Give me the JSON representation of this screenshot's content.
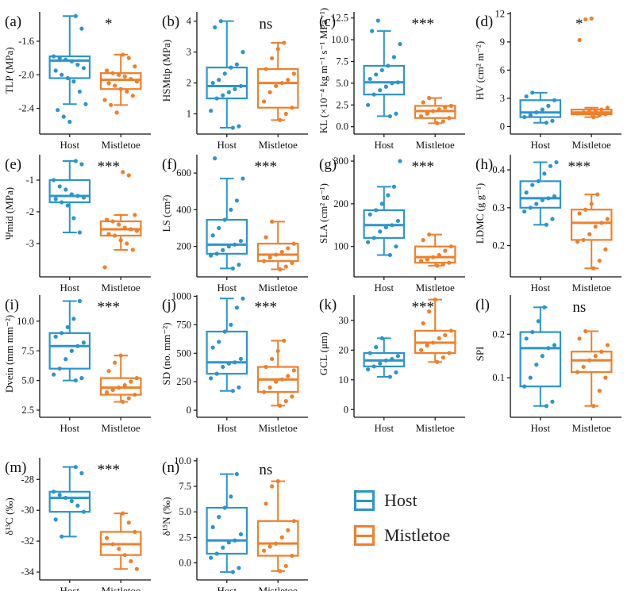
{
  "colors": {
    "host": "#2b95cf",
    "mistletoe": "#f07f2a",
    "axis": "#111111"
  },
  "legend": [
    {
      "name": "Host",
      "color": "#2b95cf"
    },
    {
      "name": "Mistletoe",
      "color": "#f07f2a"
    }
  ],
  "chart_data": [
    {
      "type": "box",
      "panel": "(a)",
      "ylabel": "TLP (MPa)",
      "significance": "*",
      "ylim": [
        -2.65,
        -1.25
      ],
      "yticks": [
        -1.6,
        -2.0,
        -2.4
      ],
      "ytick_labels": [
        "-1.6",
        "-2.0",
        "-2.4"
      ],
      "categories": [
        "Host",
        "Mistletoe"
      ],
      "boxes": [
        {
          "name": "Host",
          "min": -2.35,
          "q1": -2.04,
          "median": -1.83,
          "q3": -1.78,
          "max": -1.3,
          "points": [
            -1.3,
            -1.45,
            -1.78,
            -1.8,
            -1.82,
            -1.84,
            -1.88,
            -1.92,
            -1.95,
            -2.0,
            -2.04,
            -2.08,
            -2.2,
            -2.35,
            -2.42,
            -2.5,
            -2.56
          ]
        },
        {
          "name": "Mistletoe",
          "min": -2.36,
          "q1": -2.17,
          "median": -2.06,
          "q3": -1.98,
          "max": -1.76,
          "points": [
            -1.76,
            -1.8,
            -1.9,
            -1.95,
            -1.98,
            -2.0,
            -2.02,
            -2.05,
            -2.08,
            -2.1,
            -2.13,
            -2.17,
            -2.2,
            -2.25,
            -2.3,
            -2.36,
            -2.45
          ]
        }
      ]
    },
    {
      "type": "box",
      "panel": "(b)",
      "ylabel": "HSMtlp (MPa)",
      "significance": "ns",
      "ylim": [
        0.5,
        4.3
      ],
      "yticks": [
        1,
        2,
        3,
        4
      ],
      "ytick_labels": [
        "1",
        "2",
        "3",
        "4"
      ],
      "categories": [
        "Host",
        "Mistletoe"
      ],
      "boxes": [
        {
          "name": "Host",
          "min": 0.55,
          "q1": 1.5,
          "median": 1.9,
          "q3": 2.5,
          "max": 4.0,
          "points": [
            0.55,
            0.6,
            1.1,
            1.5,
            1.6,
            1.7,
            1.8,
            1.9,
            2.0,
            2.1,
            2.3,
            2.5,
            2.6,
            3.0,
            3.8,
            4.0
          ]
        },
        {
          "name": "Mistletoe",
          "min": 0.8,
          "q1": 1.2,
          "median": 2.0,
          "q3": 2.45,
          "max": 3.3,
          "points": [
            0.8,
            1.0,
            1.2,
            1.4,
            1.7,
            1.9,
            2.0,
            2.1,
            2.3,
            2.45,
            2.8,
            3.1,
            3.3
          ]
        }
      ]
    },
    {
      "type": "box",
      "panel": "(c)",
      "ylabel": "KL (×10⁻⁴ kg m⁻¹ s⁻¹ MPa⁻¹)",
      "significance": "***",
      "ylim": [
        -0.3,
        13.2
      ],
      "yticks": [
        0.0,
        2.5,
        5.0,
        7.5,
        10.0,
        12.5
      ],
      "ytick_labels": [
        "0.0",
        "2.5",
        "5.0",
        "7.5",
        "10.0",
        "12.5"
      ],
      "categories": [
        "Host",
        "Mistletoe"
      ],
      "boxes": [
        {
          "name": "Host",
          "min": 1.2,
          "q1": 3.7,
          "median": 5.1,
          "q3": 7.0,
          "max": 11.0,
          "points": [
            1.2,
            1.5,
            2.5,
            3.7,
            4.2,
            4.6,
            5.0,
            5.1,
            5.5,
            6.0,
            6.5,
            7.0,
            8.0,
            9.5,
            11.0,
            12.2
          ]
        },
        {
          "name": "Mistletoe",
          "min": 0.4,
          "q1": 1.0,
          "median": 1.8,
          "q3": 2.4,
          "max": 3.3,
          "points": [
            0.4,
            0.6,
            1.0,
            1.2,
            1.5,
            1.8,
            2.0,
            2.2,
            2.4,
            2.8,
            3.3
          ]
        }
      ]
    },
    {
      "type": "box",
      "panel": "(d)",
      "ylabel": "HV (cm² m⁻²)",
      "significance": "*",
      "ylim": [
        -0.3,
        12.2
      ],
      "yticks": [
        0,
        3,
        6,
        9,
        12
      ],
      "ytick_labels": [
        "0",
        "3",
        "6",
        "9",
        "12"
      ],
      "categories": [
        "Host",
        "Mistletoe"
      ],
      "boxes": [
        {
          "name": "Host",
          "min": 0.4,
          "q1": 1.0,
          "median": 1.5,
          "q3": 2.8,
          "max": 3.6,
          "points": [
            0.4,
            0.6,
            1.0,
            1.2,
            1.5,
            1.8,
            2.2,
            2.8,
            3.2,
            3.6
          ]
        },
        {
          "name": "Mistletoe",
          "min": 1.0,
          "q1": 1.3,
          "median": 1.5,
          "q3": 1.8,
          "max": 2.0,
          "points": [
            1.0,
            1.2,
            1.3,
            1.4,
            1.5,
            1.6,
            1.7,
            1.8,
            2.0,
            9.2,
            11.4,
            11.5
          ]
        }
      ]
    },
    {
      "type": "box",
      "panel": "(e)",
      "ylabel": "Ψmid (MPa)",
      "significance": "***",
      "ylim": [
        -3.9,
        -0.2
      ],
      "yticks": [
        -1,
        -2,
        -3
      ],
      "ytick_labels": [
        "-1",
        "-2",
        "-3"
      ],
      "categories": [
        "Host",
        "Mistletoe"
      ],
      "boxes": [
        {
          "name": "Host",
          "min": -2.65,
          "q1": -1.7,
          "median": -1.5,
          "q3": -1.0,
          "max": -0.4,
          "points": [
            -0.4,
            -0.5,
            -1.0,
            -1.2,
            -1.3,
            -1.45,
            -1.5,
            -1.55,
            -1.6,
            -1.7,
            -1.8,
            -2.2,
            -2.65
          ]
        },
        {
          "name": "Mistletoe",
          "min": -3.2,
          "q1": -2.75,
          "median": -2.55,
          "q3": -2.3,
          "max": -2.1,
          "points": [
            -0.75,
            -0.85,
            -2.1,
            -2.25,
            -2.3,
            -2.4,
            -2.5,
            -2.55,
            -2.6,
            -2.7,
            -2.75,
            -2.9,
            -3.0,
            -3.2,
            -3.75
          ]
        }
      ]
    },
    {
      "type": "box",
      "panel": "(f)",
      "ylabel": "LS (cm²)",
      "significance": "***",
      "ylim": [
        60,
        700
      ],
      "yticks": [
        200,
        400,
        600
      ],
      "ytick_labels": [
        "200",
        "400",
        "600"
      ],
      "categories": [
        "Host",
        "Mistletoe"
      ],
      "boxes": [
        {
          "name": "Host",
          "min": 80,
          "q1": 160,
          "median": 210,
          "q3": 345,
          "max": 570,
          "points": [
            80,
            100,
            150,
            160,
            180,
            200,
            210,
            230,
            260,
            300,
            345,
            400,
            450,
            570,
            680
          ]
        },
        {
          "name": "Mistletoe",
          "min": 75,
          "q1": 120,
          "median": 155,
          "q3": 215,
          "max": 335,
          "points": [
            75,
            90,
            110,
            120,
            140,
            155,
            170,
            190,
            215,
            250,
            335
          ]
        }
      ]
    },
    {
      "type": "box",
      "panel": "(g)",
      "ylabel": "SLA (cm² g⁻¹)",
      "significance": "***",
      "ylim": [
        40,
        315
      ],
      "yticks": [
        100,
        200,
        300
      ],
      "ytick_labels": [
        "100",
        "200",
        "300"
      ],
      "categories": [
        "Host",
        "Mistletoe"
      ],
      "boxes": [
        {
          "name": "Host",
          "min": 80,
          "q1": 120,
          "median": 150,
          "q3": 185,
          "max": 240,
          "points": [
            80,
            100,
            110,
            120,
            135,
            145,
            150,
            160,
            175,
            185,
            200,
            220,
            240,
            300
          ]
        },
        {
          "name": "Mistletoe",
          "min": 55,
          "q1": 62,
          "median": 75,
          "q3": 100,
          "max": 128,
          "points": [
            55,
            58,
            62,
            66,
            70,
            75,
            80,
            90,
            100,
            115,
            128
          ]
        }
      ]
    },
    {
      "type": "box",
      "panel": "(h)",
      "ylabel": "LDMC (g g⁻¹)",
      "significance": "***",
      "ylim": [
        0.13,
        0.44
      ],
      "yticks": [
        0.2,
        0.3,
        0.4
      ],
      "ytick_labels": [
        "0.2",
        "0.3",
        "0.4"
      ],
      "categories": [
        "Host",
        "Mistletoe"
      ],
      "boxes": [
        {
          "name": "Host",
          "min": 0.255,
          "q1": 0.3,
          "median": 0.325,
          "q3": 0.37,
          "max": 0.42,
          "points": [
            0.255,
            0.27,
            0.29,
            0.3,
            0.31,
            0.32,
            0.325,
            0.33,
            0.34,
            0.36,
            0.37,
            0.39,
            0.41,
            0.42
          ]
        },
        {
          "name": "Mistletoe",
          "min": 0.14,
          "q1": 0.215,
          "median": 0.26,
          "q3": 0.295,
          "max": 0.335,
          "points": [
            0.14,
            0.16,
            0.19,
            0.21,
            0.215,
            0.23,
            0.25,
            0.26,
            0.27,
            0.285,
            0.295,
            0.31,
            0.335
          ]
        }
      ]
    },
    {
      "type": "box",
      "panel": "(i)",
      "ylabel": "Dvein (mm mm⁻²)",
      "significance": "***",
      "ylim": [
        2.3,
        12.2
      ],
      "yticks": [
        2.5,
        5.0,
        7.5,
        10.0
      ],
      "ytick_labels": [
        "2.5",
        "5.0",
        "7.5",
        "10.0"
      ],
      "categories": [
        "Host",
        "Mistletoe"
      ],
      "boxes": [
        {
          "name": "Host",
          "min": 5.0,
          "q1": 6.0,
          "median": 7.9,
          "q3": 9.0,
          "max": 11.7,
          "points": [
            5.0,
            5.2,
            5.5,
            6.0,
            6.8,
            7.5,
            7.9,
            8.2,
            8.7,
            9.0,
            9.5,
            10.2,
            11.7
          ]
        },
        {
          "name": "Mistletoe",
          "min": 3.2,
          "q1": 3.8,
          "median": 4.4,
          "q3": 5.2,
          "max": 7.1,
          "points": [
            3.2,
            3.5,
            3.8,
            4.0,
            4.2,
            4.4,
            4.6,
            4.9,
            5.2,
            5.8,
            6.5,
            7.1
          ]
        }
      ]
    },
    {
      "type": "box",
      "panel": "(j)",
      "ylabel": "SD (no. mm⁻²)",
      "significance": "***",
      "ylim": [
        -20,
        1010
      ],
      "yticks": [
        0,
        250,
        500,
        750,
        1000
      ],
      "ytick_labels": [
        "0",
        "250",
        "500",
        "750",
        "1000"
      ],
      "categories": [
        "Host",
        "Mistletoe"
      ],
      "boxes": [
        {
          "name": "Host",
          "min": 170,
          "q1": 320,
          "median": 420,
          "q3": 690,
          "max": 980,
          "points": [
            170,
            200,
            280,
            320,
            380,
            410,
            420,
            450,
            550,
            600,
            690,
            750,
            900,
            980
          ]
        },
        {
          "name": "Mistletoe",
          "min": 40,
          "q1": 160,
          "median": 270,
          "q3": 380,
          "max": 610,
          "points": [
            40,
            80,
            120,
            160,
            200,
            250,
            270,
            300,
            350,
            380,
            450,
            520,
            610
          ]
        }
      ]
    },
    {
      "type": "box",
      "panel": "(k)",
      "ylabel": "GCL (μm)",
      "significance": "***",
      "ylim": [
        -1,
        38.5
      ],
      "yticks": [
        0,
        10,
        20,
        30
      ],
      "ytick_labels": [
        "0",
        "10",
        "20",
        "30"
      ],
      "categories": [
        "Host",
        "Mistletoe"
      ],
      "boxes": [
        {
          "name": "Host",
          "min": 11,
          "q1": 14.5,
          "median": 16.5,
          "q3": 19,
          "max": 24,
          "points": [
            11,
            12.5,
            13.5,
            14.5,
            15.5,
            16.5,
            17,
            18,
            19,
            21,
            24
          ]
        },
        {
          "name": "Mistletoe",
          "min": 16,
          "q1": 19,
          "median": 22.5,
          "q3": 26.5,
          "max": 37,
          "points": [
            16,
            17.5,
            19,
            20,
            21.5,
            22.5,
            24,
            25,
            26.5,
            29,
            33,
            37
          ]
        }
      ]
    },
    {
      "type": "box",
      "panel": "(l)",
      "ylabel": "SPI",
      "significance": "ns",
      "ylim": [
        0.02,
        0.29
      ],
      "yticks": [
        0.1,
        0.2
      ],
      "ytick_labels": [
        "0.1",
        "0.2"
      ],
      "categories": [
        "Host",
        "Mistletoe"
      ],
      "boxes": [
        {
          "name": "Host",
          "min": 0.035,
          "q1": 0.08,
          "median": 0.168,
          "q3": 0.205,
          "max": 0.262,
          "points": [
            0.035,
            0.045,
            0.08,
            0.1,
            0.13,
            0.15,
            0.168,
            0.175,
            0.19,
            0.205,
            0.23,
            0.262
          ]
        },
        {
          "name": "Mistletoe",
          "min": 0.035,
          "q1": 0.113,
          "median": 0.14,
          "q3": 0.16,
          "max": 0.207,
          "points": [
            0.035,
            0.07,
            0.1,
            0.113,
            0.125,
            0.14,
            0.15,
            0.16,
            0.175,
            0.19,
            0.207
          ]
        }
      ]
    },
    {
      "type": "box",
      "panel": "(m)",
      "ylabel": "δ¹³C (‰)",
      "significance": "***",
      "ylim": [
        -34.2,
        -26.6
      ],
      "yticks": [
        -28,
        -30,
        -32,
        -34
      ],
      "ytick_labels": [
        "-28",
        "-30",
        "-32",
        "-34"
      ],
      "categories": [
        "Host",
        "Mistletoe"
      ],
      "boxes": [
        {
          "name": "Host",
          "min": -31.7,
          "q1": -30.1,
          "median": -29.2,
          "q3": -28.8,
          "max": -27.2,
          "points": [
            -27.2,
            -27.6,
            -28.8,
            -29.0,
            -29.2,
            -29.4,
            -29.7,
            -30.1,
            -30.6,
            -31.7
          ]
        },
        {
          "name": "Mistletoe",
          "min": -33.8,
          "q1": -32.9,
          "median": -32.2,
          "q3": -31.4,
          "max": -30.2,
          "points": [
            -30.2,
            -30.8,
            -31.4,
            -31.8,
            -32.2,
            -32.5,
            -32.9,
            -33.3,
            -33.8
          ]
        }
      ]
    },
    {
      "type": "box",
      "panel": "(n)",
      "ylabel": "δ¹⁵N (‰)",
      "significance": "ns",
      "ylim": [
        -1.2,
        10.3
      ],
      "yticks": [
        0.0,
        2.5,
        5.0,
        7.5,
        10.0
      ],
      "ytick_labels": [
        "0.0",
        "2.5",
        "5.0",
        "7.5",
        "10.0"
      ],
      "categories": [
        "Host",
        "Mistletoe"
      ],
      "boxes": [
        {
          "name": "Host",
          "min": -0.9,
          "q1": 0.9,
          "median": 2.2,
          "q3": 5.4,
          "max": 8.7,
          "points": [
            -0.9,
            -0.5,
            0.5,
            0.9,
            1.5,
            2.0,
            2.2,
            2.8,
            3.5,
            4.5,
            5.4,
            6.5,
            8.7
          ]
        },
        {
          "name": "Mistletoe",
          "min": -0.8,
          "q1": 0.7,
          "median": 1.9,
          "q3": 4.1,
          "max": 8.0,
          "points": [
            -0.8,
            -0.3,
            0.7,
            1.2,
            1.6,
            1.9,
            2.5,
            3.2,
            4.1,
            5.8,
            7.5,
            8.0
          ]
        }
      ]
    }
  ]
}
